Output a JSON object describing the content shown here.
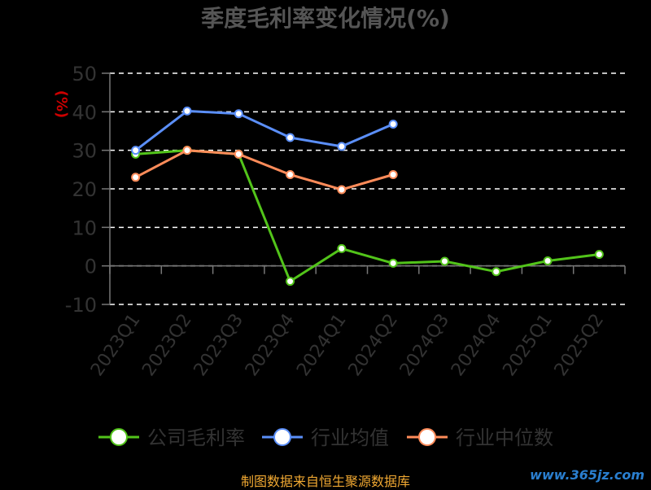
{
  "chart_data": {
    "type": "line",
    "title": "季度毛利率变化情况(%)",
    "ylabel": "(%)",
    "categories": [
      "2023Q1",
      "2023Q2",
      "2023Q3",
      "2023Q4",
      "2024Q1",
      "2024Q2",
      "2024Q3",
      "2024Q4",
      "2025Q1",
      "2025Q2"
    ],
    "y_ticks": [
      "50",
      "40",
      "30",
      "20",
      "10",
      "0",
      "-10"
    ],
    "ylim": [
      -10,
      50
    ],
    "grid": true,
    "legend_position": "bottom",
    "series": [
      {
        "name": "公司毛利率",
        "color": "#52c41a",
        "values": [
          29,
          30,
          29,
          -4,
          4.5,
          0.7,
          1.2,
          -1.5,
          1.3,
          3
        ]
      },
      {
        "name": "行业均值",
        "color": "#5b8ff9",
        "values": [
          30,
          40.2,
          39.5,
          33.3,
          31,
          36.8,
          null,
          null,
          null,
          null
        ]
      },
      {
        "name": "行业中位数",
        "color": "#ff8c5a",
        "values": [
          23,
          30,
          29,
          23.7,
          19.8,
          23.7,
          null,
          null,
          null,
          null
        ]
      }
    ]
  },
  "footer": {
    "note": "制图数据来自恒生聚源数据库"
  },
  "watermark": {
    "text": "www.365jz.com"
  }
}
